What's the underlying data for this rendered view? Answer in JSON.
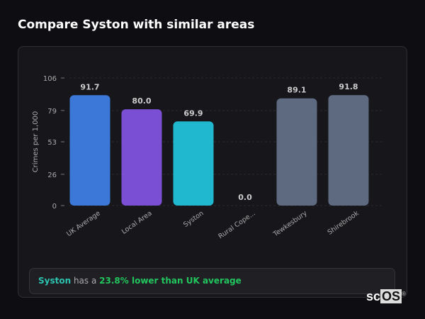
{
  "page_title": "Compare Syston with similar areas",
  "chart_data": {
    "type": "bar",
    "categories": [
      "UK Average",
      "Local Area",
      "Syston",
      "Rural Cope...",
      "Tewkesbury",
      "Shirebrook"
    ],
    "values": [
      91.7,
      80.0,
      69.9,
      0.0,
      89.1,
      91.8
    ],
    "value_labels": [
      "91.7",
      "80.0",
      "69.9",
      "0.0",
      "89.1",
      "91.8"
    ],
    "colors": [
      "#3b78d8",
      "#7b4fd4",
      "#20b8cf",
      "#5d6a80",
      "#5d6a80",
      "#5d6a80"
    ],
    "ylabel": "Crimes per 1,000",
    "yticks": [
      0,
      26,
      53,
      79,
      106
    ],
    "ylim": [
      0,
      106
    ],
    "grid": true
  },
  "summary": {
    "location": "Syston",
    "middle": " has a ",
    "highlight": "23.8% lower than UK average"
  },
  "logo": {
    "prefix": "sc",
    "suffix": "OS",
    "mark": "®"
  }
}
